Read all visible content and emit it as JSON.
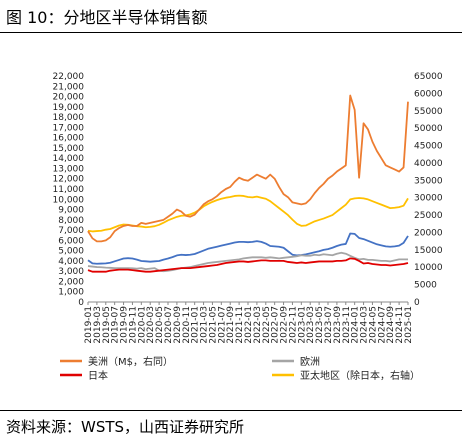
{
  "figure": {
    "title": "图 10：分地区半导体销售额",
    "source": "资料来源：WSTS，山西证券研究所"
  },
  "chart_data": {
    "type": "line",
    "title": "",
    "xlabel": "",
    "ylabel": "",
    "ylim_left": [
      0,
      22000
    ],
    "ylim_right": [
      0,
      65000
    ],
    "yticks_left": [
      "0",
      "1,000",
      "2,000",
      "3,000",
      "4,000",
      "5,000",
      "6,000",
      "7,000",
      "8,000",
      "9,000",
      "10,000",
      "11,000",
      "12,000",
      "13,000",
      "14,000",
      "15,000",
      "16,000",
      "17,000",
      "18,000",
      "19,000",
      "20,000",
      "21,000",
      "22,000"
    ],
    "yticks_right": [
      "0",
      "5000",
      "10000",
      "15000",
      "20000",
      "25000",
      "30000",
      "35000",
      "40000",
      "45000",
      "50000",
      "55000",
      "60000",
      "65000"
    ],
    "x": [
      "2019-01",
      "2019-02",
      "2019-03",
      "2019-04",
      "2019-05",
      "2019-06",
      "2019-07",
      "2019-08",
      "2019-09",
      "2019-10",
      "2019-11",
      "2019-12",
      "2020-01",
      "2020-02",
      "2020-03",
      "2020-04",
      "2020-05",
      "2020-06",
      "2020-07",
      "2020-08",
      "2020-09",
      "2020-10",
      "2020-11",
      "2020-12",
      "2021-01",
      "2021-02",
      "2021-03",
      "2021-04",
      "2021-05",
      "2021-06",
      "2021-07",
      "2021-08",
      "2021-09",
      "2021-10",
      "2021-11",
      "2021-12",
      "2022-01",
      "2022-02",
      "2022-03",
      "2022-04",
      "2022-05",
      "2022-06",
      "2022-07",
      "2022-08",
      "2022-09",
      "2022-10",
      "2022-11",
      "2022-12",
      "2023-01",
      "2023-02",
      "2023-03",
      "2023-04",
      "2023-05",
      "2023-06",
      "2023-07",
      "2023-08",
      "2023-09",
      "2023-10",
      "2023-11",
      "2023-12",
      "2024-01",
      "2024-02",
      "2024-03",
      "2024-04",
      "2024-05",
      "2024-06",
      "2024-07",
      "2024-08",
      "2024-09",
      "2024-10",
      "2024-11",
      "2024-12",
      "2025-01"
    ],
    "xticks": [
      "2019-01",
      "2019-03",
      "2019-05",
      "2019-07",
      "2019-09",
      "2019-11",
      "2020-01",
      "2020-03",
      "2020-05",
      "2020-07",
      "2020-09",
      "2020-11",
      "2021-01",
      "2021-03",
      "2021-05",
      "2021-07",
      "2021-09",
      "2021-11",
      "2022-01",
      "2022-03",
      "2022-05",
      "2022-07",
      "2022-09",
      "2022-11",
      "2023-01",
      "2023-03",
      "2023-05",
      "2023-07",
      "2023-09",
      "2023-11",
      "2024-01",
      "2024-03",
      "2024-05",
      "2024-07",
      "2024-09",
      "2024-11",
      "2025-01"
    ],
    "series": [
      {
        "name": "美洲（M$，右同）",
        "axis": "left",
        "color": "#ed7d31",
        "values": [
          6900,
          6200,
          5900,
          5900,
          6000,
          6300,
          6900,
          7200,
          7400,
          7500,
          7400,
          7400,
          7700,
          7600,
          7700,
          7800,
          7900,
          8000,
          8300,
          8600,
          9000,
          8800,
          8400,
          8300,
          8500,
          9000,
          9500,
          9800,
          10000,
          10300,
          10700,
          11000,
          11200,
          11700,
          12100,
          11900,
          11800,
          12100,
          12400,
          12200,
          12000,
          12400,
          12000,
          11200,
          10500,
          10200,
          9700,
          9600,
          9500,
          9600,
          10000,
          10600,
          11100,
          11500,
          12000,
          12300,
          12700,
          13000,
          13300,
          20100,
          18700,
          12100,
          17400,
          16800,
          15600,
          14700,
          14000,
          13300,
          13100,
          12900,
          12700,
          13100,
          19500
        ]
      },
      {
        "name": "欧洲",
        "axis": "left",
        "color": "#a5a5a5",
        "values": [
          3500,
          3450,
          3400,
          3380,
          3350,
          3330,
          3300,
          3300,
          3300,
          3300,
          3280,
          3250,
          3300,
          3200,
          3250,
          3300,
          3050,
          3000,
          3050,
          3100,
          3200,
          3300,
          3350,
          3400,
          3500,
          3600,
          3700,
          3800,
          3850,
          3900,
          3950,
          4000,
          4050,
          4100,
          4150,
          4250,
          4300,
          4350,
          4350,
          4350,
          4300,
          4350,
          4300,
          4250,
          4300,
          4350,
          4400,
          4450,
          4550,
          4500,
          4500,
          4600,
          4550,
          4650,
          4600,
          4550,
          4700,
          4800,
          4700,
          4500,
          4300,
          4150,
          4200,
          4100,
          4100,
          4050,
          4000,
          4000,
          3950,
          4050,
          4150,
          4150,
          4150
        ]
      },
      {
        "name": "日本",
        "axis": "left",
        "color": "#e00000",
        "values": [
          3100,
          2950,
          2950,
          2950,
          2950,
          3050,
          3100,
          3150,
          3150,
          3150,
          3100,
          3050,
          3000,
          2950,
          2950,
          3000,
          3050,
          3100,
          3150,
          3200,
          3250,
          3300,
          3300,
          3300,
          3350,
          3400,
          3450,
          3500,
          3550,
          3600,
          3700,
          3800,
          3850,
          3900,
          3950,
          3950,
          3900,
          3950,
          4000,
          4050,
          4050,
          4000,
          4000,
          4000,
          4000,
          3900,
          3850,
          3800,
          3850,
          3800,
          3850,
          3900,
          3950,
          3950,
          3950,
          3950,
          4000,
          4000,
          4050,
          4250,
          4200,
          4000,
          3750,
          3800,
          3700,
          3650,
          3600,
          3600,
          3550,
          3600,
          3650,
          3700,
          3800
        ]
      },
      {
        "name": "亚太地区（除日本，右轴）",
        "axis": "right",
        "color": "#ffc000",
        "values": [
          20500,
          20300,
          20400,
          20500,
          20800,
          21000,
          21500,
          22000,
          22300,
          22200,
          22000,
          21800,
          21700,
          21500,
          21600,
          21800,
          22200,
          22800,
          23500,
          24000,
          24500,
          24800,
          24900,
          25200,
          25700,
          26500,
          27500,
          28200,
          28800,
          29300,
          29700,
          30000,
          30200,
          30500,
          30600,
          30500,
          30200,
          30100,
          30300,
          30000,
          29700,
          29000,
          28000,
          27000,
          26000,
          25000,
          23700,
          22500,
          21900,
          22000,
          22600,
          23200,
          23600,
          24000,
          24500,
          25000,
          26000,
          27000,
          28000,
          29500,
          29800,
          29900,
          29800,
          29500,
          29000,
          28500,
          28000,
          27500,
          27000,
          27100,
          27300,
          27700,
          29800
        ]
      }
    ],
    "extra_series_note": "",
    "legend_position": "bottom"
  },
  "chart_total_series": {
    "name": "",
    "values": [
      12000,
      11100,
      11000,
      11050,
      11100,
      11300,
      11700,
      12100,
      12500,
      12600,
      12500,
      12200,
      11800,
      11700,
      11600,
      11700,
      11800,
      12200,
      12500,
      12900,
      13400,
      13600,
      13500,
      13600,
      13800,
      14300,
      14800,
      15300,
      15600,
      15900,
      16200,
      16500,
      16800,
      17100,
      17300,
      17300,
      17200,
      17300,
      17500,
      17300,
      16800,
      16100,
      16000,
      15900,
      15600,
      14600,
      13600,
      13400,
      13500,
      13700,
      14000,
      14300,
      14600,
      15000,
      15200,
      15600,
      16100,
      16500,
      16700,
      19700,
      19600,
      18400,
      18100,
      17600,
      17100,
      16600,
      16300,
      16000,
      15900,
      16000,
      16200,
      17000,
      19000
    ]
  },
  "legend": [
    {
      "label": "美洲（M$，右同）",
      "color": "#ed7d31"
    },
    {
      "label": "欧洲",
      "color": "#a5a5a5"
    },
    {
      "label": "日本",
      "color": "#e00000"
    },
    {
      "label": "亚太地区（除日本，右轴）",
      "color": "#ffc000"
    }
  ]
}
